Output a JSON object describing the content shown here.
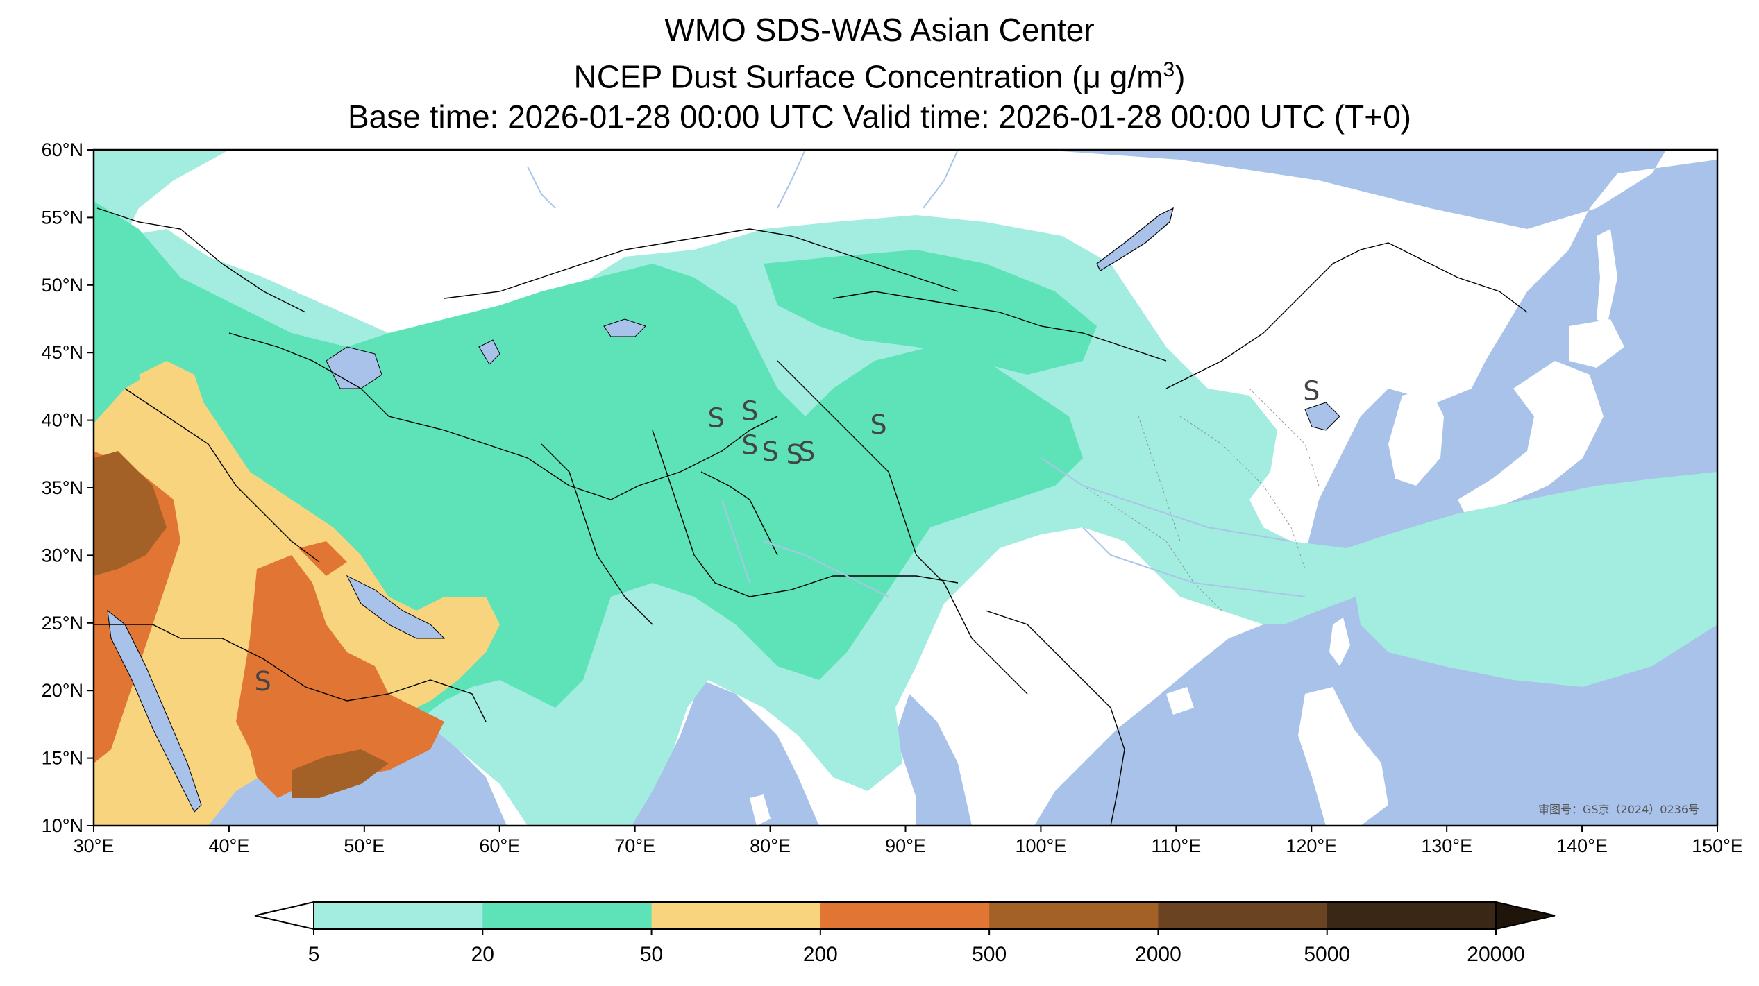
{
  "title": {
    "line1": "WMO SDS-WAS Asian Center",
    "line2_prefix": "NCEP Dust Surface Concentration (",
    "line2_unit": "μ g/m",
    "line2_sup": "3",
    "line2_suffix": ")",
    "line3": "Base time: 2026-01-28 00:00 UTC Valid time: 2026-01-28 00:00 UTC (T+0)"
  },
  "map": {
    "lon_range": [
      30,
      150
    ],
    "lat_range": [
      10,
      60
    ],
    "lon_ticks": [
      "30°E",
      "40°E",
      "50°E",
      "60°E",
      "70°E",
      "80°E",
      "90°E",
      "100°E",
      "110°E",
      "120°E",
      "130°E",
      "140°E",
      "150°E"
    ],
    "lat_ticks": [
      "60°N",
      "55°N",
      "50°N",
      "45°N",
      "40°N",
      "35°N",
      "30°N",
      "25°N",
      "20°N",
      "15°N",
      "10°N"
    ],
    "approval_number": "审图号：GS京（2024）0236号",
    "colors": {
      "ocean": "#a8c2ea",
      "land": "#ffffff",
      "border": "#000000",
      "river": "#a9c6e8"
    }
  },
  "colorbar": {
    "levels": [
      "5",
      "20",
      "50",
      "200",
      "500",
      "2000",
      "5000",
      "20000"
    ],
    "colors": [
      "#a3ece0",
      "#5ee3b8",
      "#f9d47e",
      "#e07534",
      "#a46127",
      "#6a4422",
      "#3b2715"
    ],
    "under_color": "#ffffff",
    "over_color": "#1f150b"
  },
  "dust_markers": [
    {
      "symbol": "S",
      "lon": 42.5,
      "lat": 20.0
    },
    {
      "symbol": "S",
      "lon": 76.0,
      "lat": 39.5
    },
    {
      "symbol": "S",
      "lon": 78.5,
      "lat": 40.0
    },
    {
      "symbol": "S",
      "lon": 78.5,
      "lat": 37.5
    },
    {
      "symbol": "S",
      "lon": 80.0,
      "lat": 37.0
    },
    {
      "symbol": "S",
      "lon": 81.8,
      "lat": 36.8
    },
    {
      "symbol": "S",
      "lon": 82.7,
      "lat": 37.0
    },
    {
      "symbol": "S",
      "lon": 88.0,
      "lat": 39.0
    },
    {
      "symbol": "S",
      "lon": 120.0,
      "lat": 41.5
    }
  ]
}
